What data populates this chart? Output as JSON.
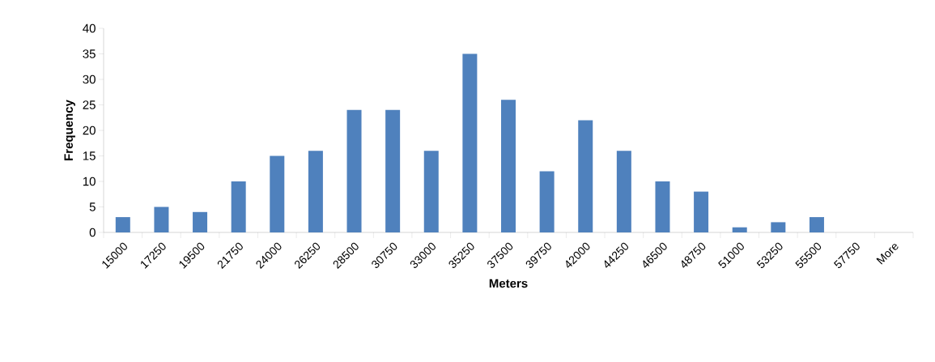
{
  "chart_data": {
    "type": "bar",
    "xlabel": "Meters",
    "ylabel": "Frequency",
    "categories": [
      "15000",
      "17250",
      "19500",
      "21750",
      "24000",
      "26250",
      "28500",
      "30750",
      "33000",
      "35250",
      "37500",
      "39750",
      "42000",
      "44250",
      "46500",
      "48750",
      "51000",
      "53250",
      "55500",
      "57750",
      "More"
    ],
    "values": [
      3,
      5,
      4,
      10,
      15,
      16,
      24,
      24,
      16,
      35,
      26,
      12,
      22,
      16,
      10,
      8,
      1,
      2,
      3,
      0,
      0
    ],
    "color": "#4f81bd",
    "ylim": [
      0,
      40
    ],
    "yticks": [
      0,
      5,
      10,
      15,
      20,
      25,
      30,
      35,
      40
    ]
  }
}
